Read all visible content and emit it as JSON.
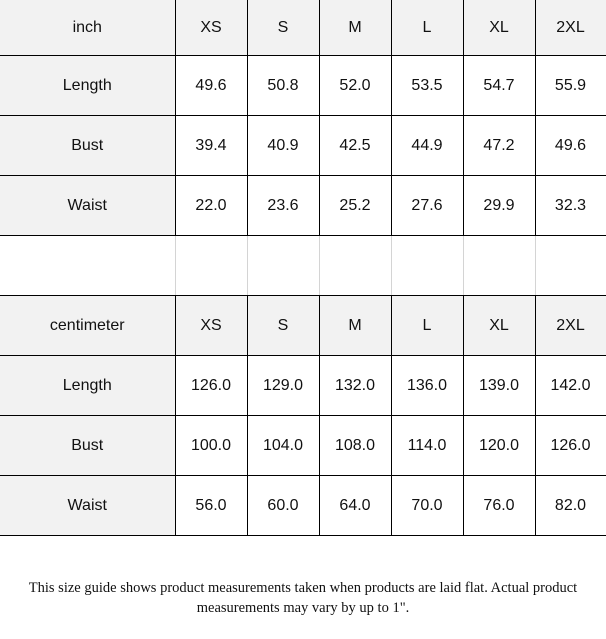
{
  "inch_table": {
    "unit": "inch",
    "sizes": [
      "XS",
      "S",
      "M",
      "L",
      "XL",
      "2XL"
    ],
    "rows": [
      {
        "label": "Length",
        "values": [
          "49.6",
          "50.8",
          "52.0",
          "53.5",
          "54.7",
          "55.9"
        ]
      },
      {
        "label": "Bust",
        "values": [
          "39.4",
          "40.9",
          "42.5",
          "44.9",
          "47.2",
          "49.6"
        ]
      },
      {
        "label": "Waist",
        "values": [
          "22.0",
          "23.6",
          "25.2",
          "27.6",
          "29.9",
          "32.3"
        ]
      }
    ]
  },
  "cm_table": {
    "unit": "centimeter",
    "sizes": [
      "XS",
      "S",
      "M",
      "L",
      "XL",
      "2XL"
    ],
    "rows": [
      {
        "label": "Length",
        "values": [
          "126.0",
          "129.0",
          "132.0",
          "136.0",
          "139.0",
          "142.0"
        ]
      },
      {
        "label": "Bust",
        "values": [
          "100.0",
          "104.0",
          "108.0",
          "114.0",
          "120.0",
          "126.0"
        ]
      },
      {
        "label": "Waist",
        "values": [
          "56.0",
          "60.0",
          "64.0",
          "70.0",
          "76.0",
          "82.0"
        ]
      }
    ]
  },
  "note": {
    "line1": "This size guide shows product measurements taken when products are laid flat. Actual product",
    "line2": "measurements may vary by up to 1\"."
  }
}
